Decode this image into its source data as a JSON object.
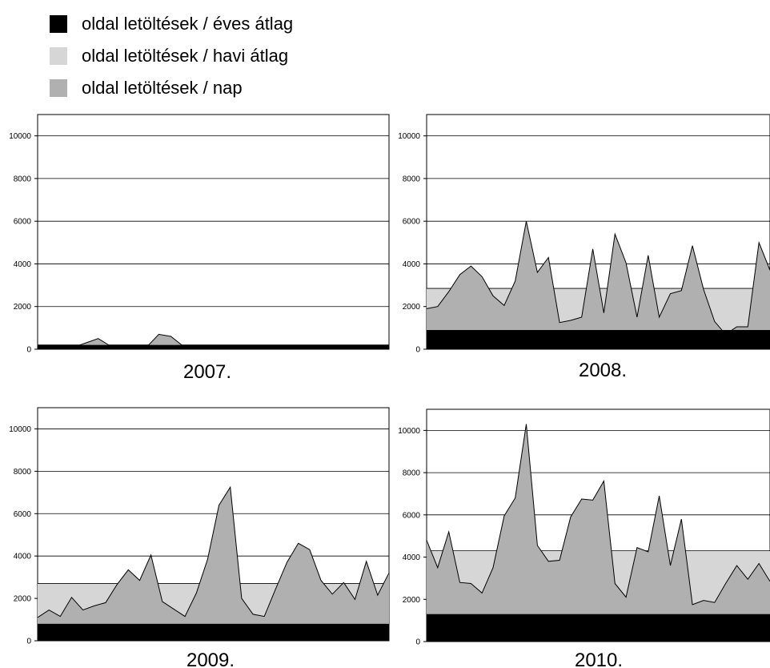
{
  "legend": {
    "items": [
      {
        "label": "oldal letöltések / éves átlag",
        "color": "#000000"
      },
      {
        "label": "oldal letöltések / havi átlag",
        "color": "#d6d6d6"
      },
      {
        "label": "oldal letöltések / nap",
        "color": "#b0b0b0"
      }
    ]
  },
  "chart_data": [
    {
      "type": "area",
      "title": "2007.",
      "ylim": [
        0,
        11000
      ],
      "yticks": [
        0,
        2000,
        4000,
        6000,
        8000,
        10000
      ],
      "grid": true,
      "series": [
        {
          "name": "oldal letöltések / éves átlag",
          "values": [
            200
          ]
        },
        {
          "name": "oldal letöltések / havi átlag",
          "values": [
            200
          ]
        },
        {
          "name": "oldal letöltések / nap",
          "values": [
            0,
            50,
            50,
            100,
            300,
            500,
            150,
            100,
            150,
            100,
            700,
            600,
            150,
            150,
            150,
            150,
            50,
            0,
            100,
            50,
            50,
            0,
            0,
            0,
            0,
            0,
            0,
            0,
            0,
            0
          ]
        }
      ]
    },
    {
      "type": "area",
      "title": "2008.",
      "ylim": [
        0,
        11000
      ],
      "yticks": [
        0,
        2000,
        4000,
        6000,
        8000,
        10000
      ],
      "grid": true,
      "series": [
        {
          "name": "oldal letöltések / éves átlag",
          "values": [
            900
          ]
        },
        {
          "name": "oldal letöltések / havi átlag",
          "values": [
            2850
          ]
        },
        {
          "name": "oldal letöltések / nap",
          "values": [
            1900,
            2000,
            2700,
            3500,
            3900,
            3400,
            2500,
            2050,
            3200,
            6000,
            3600,
            4300,
            1250,
            1350,
            1500,
            4700,
            1700,
            5400,
            4050,
            1500,
            4400,
            1500,
            2600,
            2750,
            4850,
            2800,
            1300,
            700,
            1050,
            1050,
            5000,
            3700
          ]
        }
      ]
    },
    {
      "type": "area",
      "title": "2009.",
      "ylim": [
        0,
        11000
      ],
      "yticks": [
        0,
        2000,
        4000,
        6000,
        8000,
        10000
      ],
      "grid": true,
      "series": [
        {
          "name": "oldal letöltések / éves átlag",
          "values": [
            800
          ]
        },
        {
          "name": "oldal letöltések / havi átlag",
          "values": [
            2700
          ]
        },
        {
          "name": "oldal letöltések / nap",
          "values": [
            1100,
            1450,
            1150,
            2050,
            1450,
            1650,
            1800,
            2650,
            3350,
            2850,
            4050,
            1850,
            1500,
            1150,
            2250,
            3850,
            6400,
            7250,
            2000,
            1250,
            1150,
            2450,
            3700,
            4600,
            4300,
            2850,
            2200,
            2750,
            1950,
            3750,
            2150,
            3200
          ]
        }
      ]
    },
    {
      "type": "area",
      "title": "2010.",
      "ylim": [
        0,
        11000
      ],
      "yticks": [
        0,
        2000,
        4000,
        6000,
        8000,
        10000
      ],
      "grid": true,
      "series": [
        {
          "name": "oldal letöltések / éves átlag",
          "values": [
            1300
          ]
        },
        {
          "name": "oldal letöltések / havi átlag",
          "values": [
            4300
          ]
        },
        {
          "name": "oldal letöltések / nap",
          "values": [
            4800,
            3500,
            5200,
            2800,
            2750,
            2300,
            3500,
            5950,
            6800,
            10300,
            4550,
            3800,
            3850,
            5900,
            6750,
            6700,
            7600,
            2750,
            2100,
            4450,
            4250,
            6900,
            3600,
            5800,
            1750,
            1950,
            1850,
            2750,
            3600,
            2950,
            3700,
            2850
          ]
        }
      ]
    }
  ]
}
